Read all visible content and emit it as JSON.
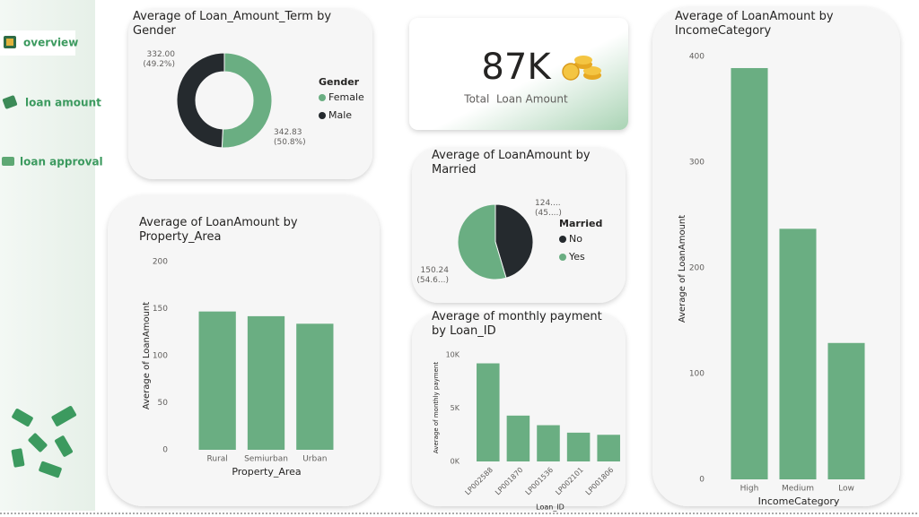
{
  "nav": {
    "items": [
      "overview",
      "loan amount",
      "loan approval"
    ]
  },
  "kpi": {
    "value": "87K",
    "label": "Total  Loan Amount"
  },
  "chart_data": [
    {
      "type": "donut",
      "title": "Average of Loan_Amount_Term by Gender",
      "legend_title": "Gender",
      "categories": [
        "Female",
        "Male"
      ],
      "values": [
        342.83,
        332.0
      ],
      "value_labels": [
        "342.83 (50.8%)",
        "332.00 (49.2%)"
      ],
      "colors": [
        "#6aae82",
        "#252a2e"
      ]
    },
    {
      "type": "bar",
      "title": "Average of LoanAmount by Property_Area",
      "x_label": "Property_Area",
      "y_label": "Average of LoanAmount",
      "categories": [
        "Rural",
        "Semiurban",
        "Urban"
      ],
      "values": [
        147,
        142,
        134
      ],
      "color": "#6aae82",
      "ylim": [
        0,
        200
      ],
      "yticks": [
        0,
        50,
        100,
        150,
        200
      ]
    },
    {
      "type": "pie",
      "title": "Average of LoanAmount by Married",
      "legend_title": "Married",
      "categories": [
        "No",
        "Yes"
      ],
      "values": [
        124.9,
        150.24
      ],
      "value_labels": [
        "124.... (45....)",
        "150.24 (54.6...)"
      ],
      "colors": [
        "#252a2e",
        "#6aae82"
      ]
    },
    {
      "type": "bar",
      "title": "Average of monthly payment by Loan_ID",
      "x_label": "Loan_ID",
      "y_label": "Average of monthly payment",
      "categories": [
        "LP002588",
        "LP001870",
        "LP001536",
        "LP002101",
        "LP001806"
      ],
      "values": [
        9200,
        4300,
        3400,
        2700,
        2500
      ],
      "color": "#6aae82",
      "ylim": [
        0,
        10000
      ],
      "yticks": [
        {
          "value": 0,
          "label": "0K"
        },
        {
          "value": 5000,
          "label": "5K"
        },
        {
          "value": 10000,
          "label": "10K"
        }
      ]
    },
    {
      "type": "bar",
      "title": "Average of LoanAmount by IncomeCategory",
      "x_label": "IncomeCategory",
      "y_label": "Average of LoanAmount",
      "categories": [
        "High",
        "Medium",
        "Low"
      ],
      "values": [
        389,
        237,
        129
      ],
      "color": "#6aae82",
      "ylim": [
        0,
        400
      ],
      "yticks": [
        0,
        100,
        200,
        300,
        400
      ]
    }
  ]
}
